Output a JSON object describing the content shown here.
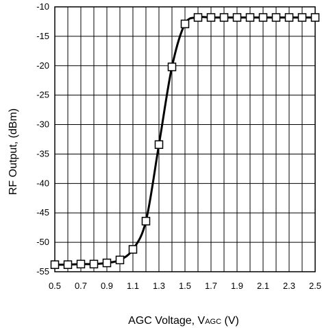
{
  "chart_data": {
    "type": "line",
    "xlabel": {
      "main": "AGC Voltage, V",
      "subscript": "AGC",
      "unit": " (V)"
    },
    "ylabel": "RF Output, (dBm)",
    "xlim": [
      0.5,
      2.5
    ],
    "ylim": [
      -55,
      -10
    ],
    "x_ticks": [
      "0.5",
      "0.7",
      "0.9",
      "1.1",
      "1.3",
      "1.5",
      "1.7",
      "1.9",
      "2.1",
      "2.3",
      "2.5"
    ],
    "y_ticks": [
      "-10",
      "-15",
      "-20",
      "-25",
      "-30",
      "-35",
      "-40",
      "-45",
      "-50",
      "-55"
    ],
    "grid": true,
    "marker": "open-square",
    "line_color": "#000000",
    "series": [
      {
        "x": [
          0.5,
          0.6,
          0.7,
          0.8,
          0.9,
          1.0,
          1.1,
          1.2,
          1.3,
          1.4,
          1.5,
          1.6,
          1.7,
          1.8,
          1.9,
          2.0,
          2.1,
          2.2,
          2.3,
          2.4,
          2.5
        ],
        "y": [
          -53.8,
          -53.8,
          -53.7,
          -53.7,
          -53.5,
          -53.0,
          -51.2,
          -46.4,
          -33.4,
          -20.2,
          -12.9,
          -11.8,
          -11.8,
          -11.8,
          -11.8,
          -11.8,
          -11.8,
          -11.8,
          -11.8,
          -11.8,
          -11.8
        ]
      }
    ]
  }
}
